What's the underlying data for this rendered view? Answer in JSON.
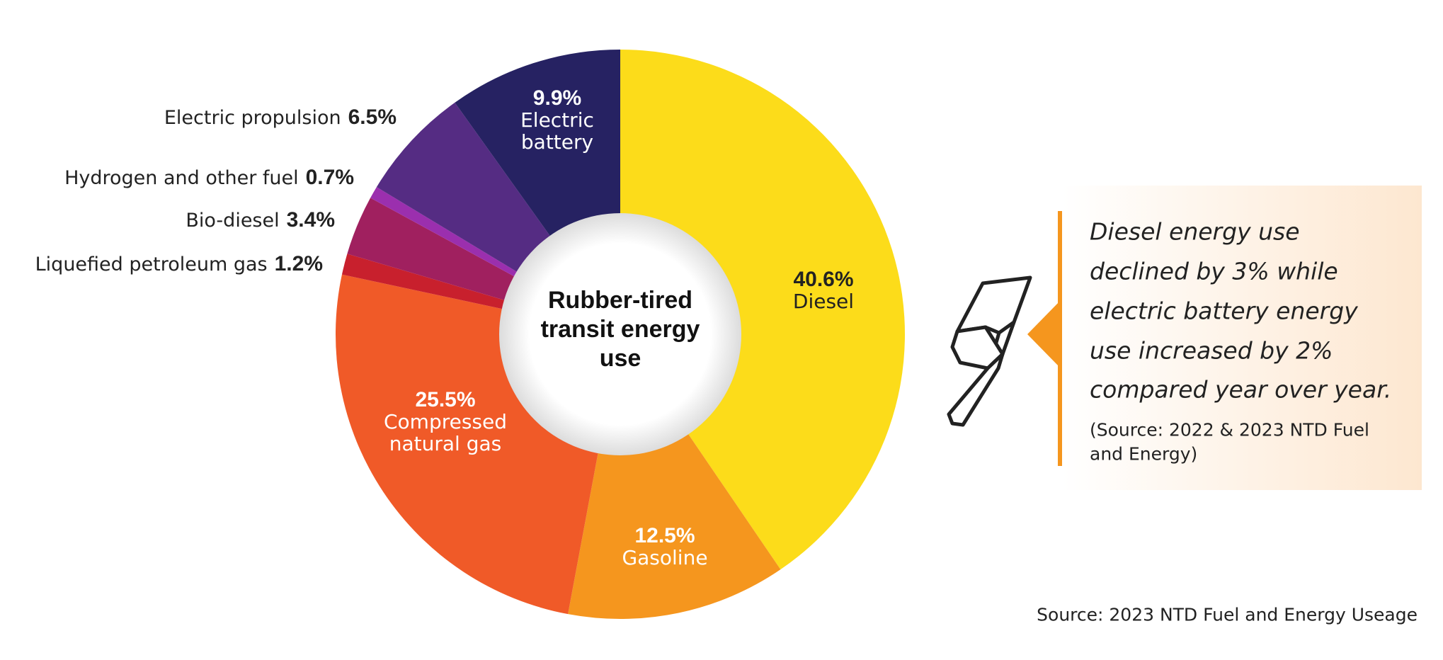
{
  "chart_data": {
    "type": "donut",
    "title": "Rubber-tired transit energy use",
    "categories": [
      "Diesel",
      "Gasoline",
      "Compressed natural gas",
      "Liquefied petroleum gas",
      "Bio-diesel",
      "Hydrogen and other fuel",
      "Electric propulsion",
      "Electric battery"
    ],
    "values": [
      40.6,
      12.5,
      25.5,
      1.2,
      3.4,
      0.7,
      6.5,
      9.9
    ],
    "value_labels": [
      "40.6%",
      "12.5%",
      "25.5%",
      "1.2%",
      "3.4%",
      "0.7%",
      "6.5%",
      "9.9%"
    ],
    "colors": [
      "#fcdc1a",
      "#f5961e",
      "#f05a28",
      "#c8202d",
      "#a0205f",
      "#9b2fae",
      "#552c83",
      "#262262"
    ],
    "callout": [
      "Diesel energy use",
      "declined by 3% while",
      "electric battery energy",
      "use increased by 2%",
      "compared year over year."
    ],
    "callout_source": [
      "(Source: 2022 & 2023 NTD Fuel",
      "and Energy)"
    ],
    "source": "Source: 2023 NTD Fuel and Energy Useage"
  }
}
